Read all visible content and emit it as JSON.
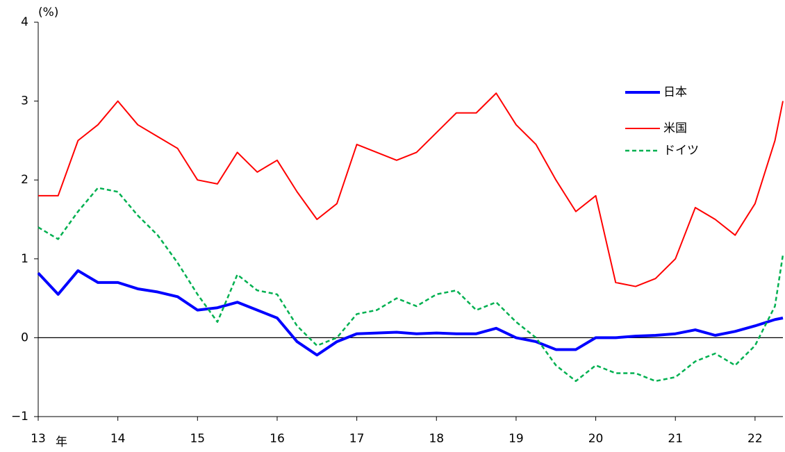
{
  "chart_data": {
    "type": "line",
    "y_axis_label": "(%)",
    "x_axis_label": "年",
    "x": [
      13.0,
      13.25,
      13.5,
      13.75,
      14.0,
      14.25,
      14.5,
      14.75,
      15.0,
      15.25,
      15.5,
      15.75,
      16.0,
      16.25,
      16.5,
      16.75,
      17.0,
      17.25,
      17.5,
      17.75,
      18.0,
      18.25,
      18.5,
      18.75,
      19.0,
      19.25,
      19.5,
      19.75,
      20.0,
      20.25,
      20.5,
      20.75,
      21.0,
      21.25,
      21.5,
      21.75,
      22.0,
      22.25,
      22.35
    ],
    "series": [
      {
        "name": "日本",
        "color": "#0000ff",
        "style": "solid",
        "width": 4,
        "values": [
          0.82,
          0.55,
          0.85,
          0.7,
          0.7,
          0.62,
          0.58,
          0.52,
          0.35,
          0.38,
          0.45,
          0.35,
          0.25,
          -0.05,
          -0.22,
          -0.05,
          0.05,
          0.06,
          0.07,
          0.05,
          0.06,
          0.05,
          0.05,
          0.12,
          0.0,
          -0.05,
          -0.15,
          -0.15,
          0.0,
          0.0,
          0.02,
          0.03,
          0.05,
          0.1,
          0.03,
          0.08,
          0.15,
          0.23,
          0.25
        ]
      },
      {
        "name": "米国",
        "color": "#ff0000",
        "style": "solid",
        "width": 2,
        "values": [
          1.8,
          1.8,
          2.5,
          2.7,
          3.0,
          2.7,
          2.55,
          2.4,
          2.0,
          1.95,
          2.35,
          2.1,
          2.25,
          1.85,
          1.5,
          1.7,
          2.45,
          2.35,
          2.25,
          2.35,
          2.6,
          2.85,
          2.85,
          3.1,
          2.7,
          2.45,
          2.0,
          1.6,
          1.8,
          0.7,
          0.65,
          0.75,
          1.0,
          1.65,
          1.5,
          1.3,
          1.7,
          2.5,
          3.0
        ]
      },
      {
        "name": "ドイツ",
        "color": "#00b050",
        "style": "dashed",
        "width": 2.5,
        "values": [
          1.4,
          1.25,
          1.6,
          1.9,
          1.85,
          1.55,
          1.3,
          0.95,
          0.55,
          0.2,
          0.8,
          0.6,
          0.55,
          0.15,
          -0.1,
          0.0,
          0.3,
          0.35,
          0.5,
          0.4,
          0.55,
          0.6,
          0.35,
          0.45,
          0.2,
          0.0,
          -0.35,
          -0.55,
          -0.35,
          -0.45,
          -0.45,
          -0.55,
          -0.5,
          -0.3,
          -0.2,
          -0.35,
          -0.1,
          0.4,
          1.05
        ]
      }
    ],
    "xlim": [
      13,
      22.35
    ],
    "xticks": [
      13,
      14,
      15,
      16,
      17,
      18,
      19,
      20,
      21,
      22
    ],
    "ylim": [
      -1,
      4
    ],
    "yticks": [
      -1,
      0,
      1,
      2,
      3,
      4
    ],
    "yticks_labels": [
      "−1",
      "0",
      "1",
      "2",
      "3",
      "4"
    ],
    "zero_line": true,
    "legend": "upper right"
  }
}
